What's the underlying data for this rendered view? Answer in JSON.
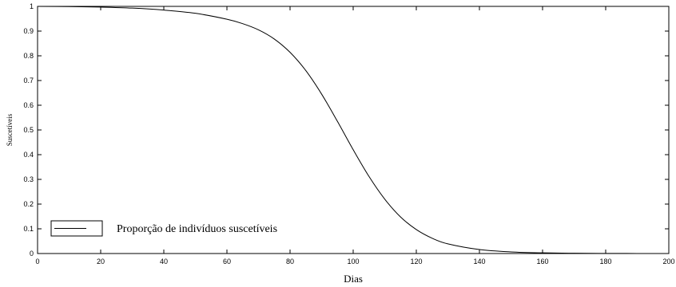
{
  "chart_data": {
    "type": "line",
    "xlabel": "Dias",
    "ylabel": "Suscetíveis",
    "xlim": [
      0,
      200
    ],
    "ylim": [
      0,
      1
    ],
    "x_ticks": [
      0,
      20,
      40,
      60,
      80,
      100,
      120,
      140,
      160,
      180,
      200
    ],
    "y_ticks": [
      0,
      0.1,
      0.2,
      0.3,
      0.4,
      0.5,
      0.6,
      0.7,
      0.8,
      0.9,
      1
    ],
    "grid": false,
    "legend_position": "bottom-left",
    "series": [
      {
        "name": "Proporção de indivíduos suscetíveis",
        "color": "#000000",
        "x": [
          0,
          10,
          20,
          30,
          40,
          50,
          60,
          65,
          70,
          75,
          80,
          85,
          90,
          95,
          100,
          105,
          110,
          115,
          120,
          125,
          130,
          140,
          150,
          160,
          170,
          180,
          190,
          200
        ],
        "y": [
          1.0,
          0.999,
          0.997,
          0.993,
          0.985,
          0.972,
          0.948,
          0.93,
          0.905,
          0.868,
          0.814,
          0.74,
          0.645,
          0.535,
          0.42,
          0.312,
          0.22,
          0.148,
          0.097,
          0.062,
          0.039,
          0.016,
          0.0065,
          0.0027,
          0.0012,
          0.0005,
          0.0002,
          0.0001
        ]
      }
    ]
  }
}
